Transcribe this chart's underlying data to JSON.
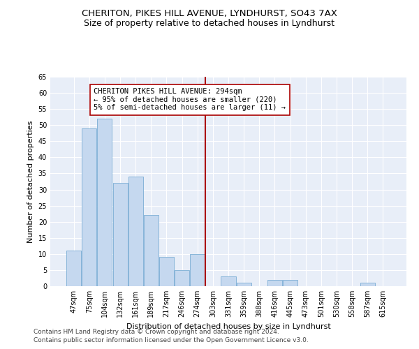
{
  "title1": "CHERITON, PIKES HILL AVENUE, LYNDHURST, SO43 7AX",
  "title2": "Size of property relative to detached houses in Lyndhurst",
  "xlabel": "Distribution of detached houses by size in Lyndhurst",
  "ylabel": "Number of detached properties",
  "categories": [
    "47sqm",
    "75sqm",
    "104sqm",
    "132sqm",
    "161sqm",
    "189sqm",
    "217sqm",
    "246sqm",
    "274sqm",
    "303sqm",
    "331sqm",
    "359sqm",
    "388sqm",
    "416sqm",
    "445sqm",
    "473sqm",
    "501sqm",
    "530sqm",
    "558sqm",
    "587sqm",
    "615sqm"
  ],
  "values": [
    11,
    49,
    52,
    32,
    34,
    22,
    9,
    5,
    10,
    0,
    3,
    1,
    0,
    2,
    2,
    0,
    0,
    0,
    0,
    1,
    0
  ],
  "bar_color": "#c5d8ef",
  "bar_edge_color": "#7aadd4",
  "vline_x_idx": 8.5,
  "vline_color": "#aa0000",
  "annotation_text": "CHERITON PIKES HILL AVENUE: 294sqm\n← 95% of detached houses are smaller (220)\n5% of semi-detached houses are larger (11) →",
  "annotation_box_color": "white",
  "annotation_box_edge": "#aa0000",
  "ylim": [
    0,
    65
  ],
  "yticks": [
    0,
    5,
    10,
    15,
    20,
    25,
    30,
    35,
    40,
    45,
    50,
    55,
    60,
    65
  ],
  "background_color": "#e8eef8",
  "grid_color": "#ffffff",
  "footer1": "Contains HM Land Registry data © Crown copyright and database right 2024.",
  "footer2": "Contains public sector information licensed under the Open Government Licence v3.0.",
  "title_fontsize": 9.5,
  "subtitle_fontsize": 9,
  "axis_label_fontsize": 8,
  "tick_fontsize": 7,
  "footer_fontsize": 6.5,
  "annotation_fontsize": 7.5
}
